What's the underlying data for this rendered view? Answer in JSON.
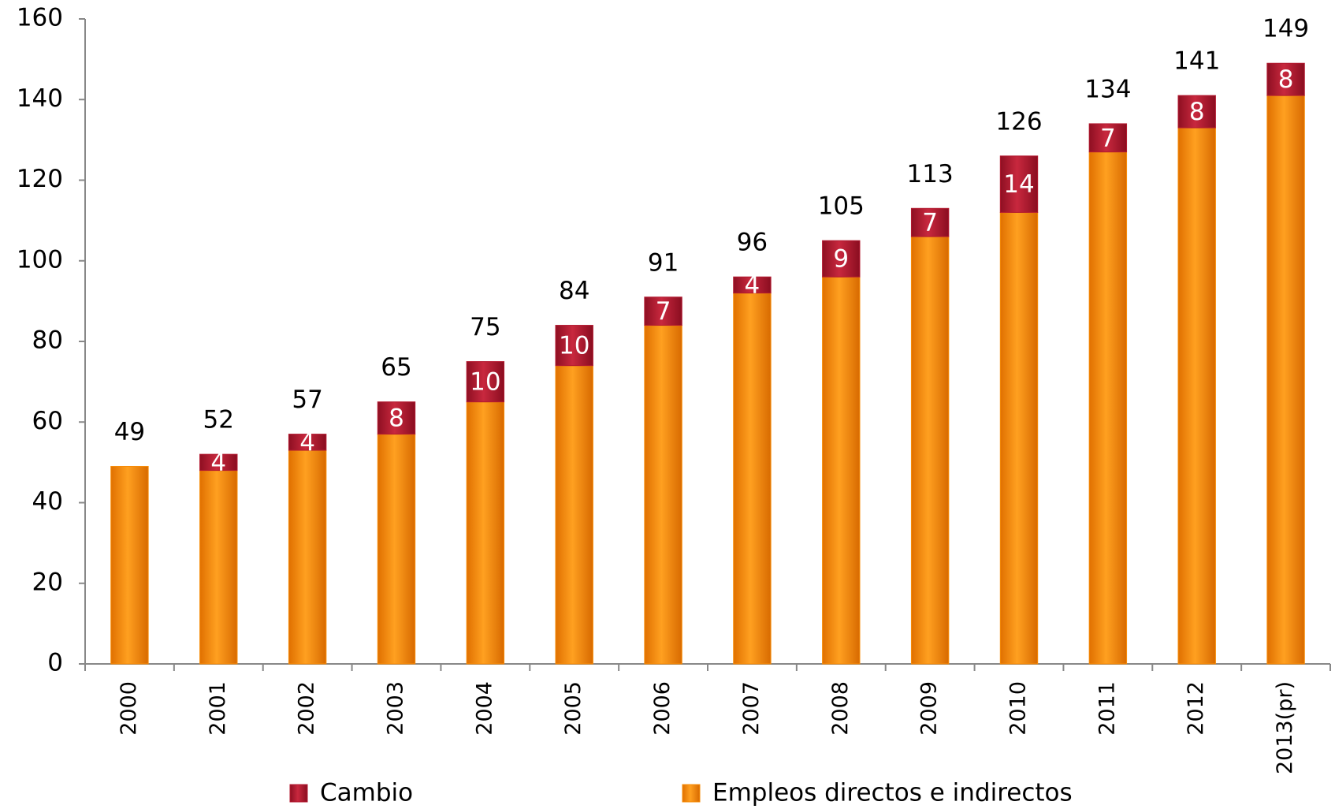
{
  "chart_data": {
    "type": "stacked_bar",
    "categories": [
      "2000",
      "2001",
      "2002",
      "2003",
      "2004",
      "2005",
      "2006",
      "2007",
      "2008",
      "2009",
      "2010",
      "2011",
      "2012",
      "2013(pr)"
    ],
    "series": [
      {
        "name": "Empleos directos e indirectos",
        "color": "#f78c08",
        "values": [
          49,
          48,
          53,
          57,
          65,
          74,
          84,
          92,
          96,
          106,
          112,
          127,
          133,
          141
        ]
      },
      {
        "name": "Cambio",
        "color": "#b31a30",
        "values": [
          null,
          4,
          4,
          8,
          10,
          10,
          7,
          4,
          9,
          7,
          14,
          7,
          8,
          8
        ]
      }
    ],
    "total_labels": [
      49,
      52,
      57,
      65,
      75,
      84,
      91,
      96,
      105,
      113,
      126,
      134,
      141,
      149
    ],
    "ylim": [
      0,
      160
    ],
    "yticks": [
      0,
      20,
      40,
      60,
      80,
      100,
      120,
      140,
      160
    ]
  }
}
